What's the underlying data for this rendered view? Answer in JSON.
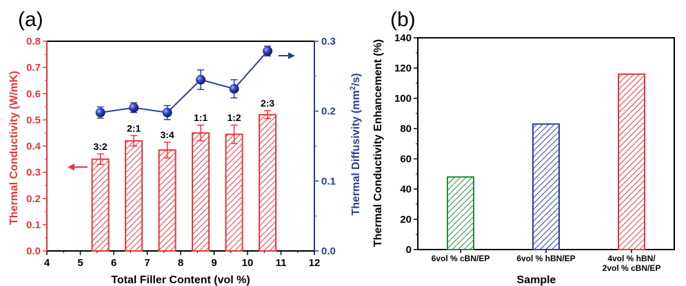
{
  "colors": {
    "red": "#e8343a",
    "blue": "#2b3d9a",
    "green": "#1f8a3a",
    "axis": "#000000"
  },
  "chart_data": [
    {
      "panel": "(a)",
      "type": "bar+line",
      "xlabel": "Total Filler Content  (vol %)",
      "ylabel_left": "Thermal Conductivity (W/mK)",
      "ylabel_right": "Thermal Diffusivity (mm²/s)",
      "xlim": [
        4,
        12
      ],
      "ylim_left": [
        0.0,
        0.8
      ],
      "ylim_right": [
        0.0,
        0.3
      ],
      "x_ticks": [
        "4",
        "5",
        "6",
        "7",
        "8",
        "9",
        "10",
        "11",
        "12"
      ],
      "y_left_ticks": [
        "0.0",
        "0.1",
        "0.2",
        "0.3",
        "0.4",
        "0.5",
        "0.6",
        "0.7",
        "0.8"
      ],
      "y_right_ticks": [
        "0.0",
        "0.1",
        "0.2",
        "0.3"
      ],
      "bars": {
        "x": [
          5.6,
          6.6,
          7.6,
          8.6,
          9.6,
          10.6
        ],
        "values": [
          0.35,
          0.42,
          0.385,
          0.45,
          0.445,
          0.52
        ],
        "errors": [
          0.02,
          0.02,
          0.03,
          0.03,
          0.035,
          0.015
        ],
        "labels": [
          "3:2",
          "2:1",
          "3:4",
          "1:1",
          "1:2",
          "2:3"
        ]
      },
      "line": {
        "x": [
          5.6,
          6.6,
          7.6,
          8.6,
          9.6,
          10.6
        ],
        "values": [
          0.198,
          0.205,
          0.198,
          0.245,
          0.232,
          0.286
        ],
        "errors": [
          0.008,
          0.007,
          0.01,
          0.014,
          0.013,
          0.007
        ]
      }
    },
    {
      "panel": "(b)",
      "type": "bar",
      "xlabel": "Sample",
      "ylabel": "Thermal Conductivity Enhancement (%)",
      "ylim": [
        0,
        140
      ],
      "y_ticks": [
        "0",
        "20",
        "40",
        "60",
        "80",
        "100",
        "120",
        "140"
      ],
      "categories": [
        [
          "6vol % cBN/EP"
        ],
        [
          "6vol % hBN/EP"
        ],
        [
          "4vol % hBN/",
          "2vol % cBN/EP"
        ]
      ],
      "values": [
        48,
        83,
        116
      ],
      "bar_colors": [
        "green",
        "blue",
        "red"
      ]
    }
  ]
}
